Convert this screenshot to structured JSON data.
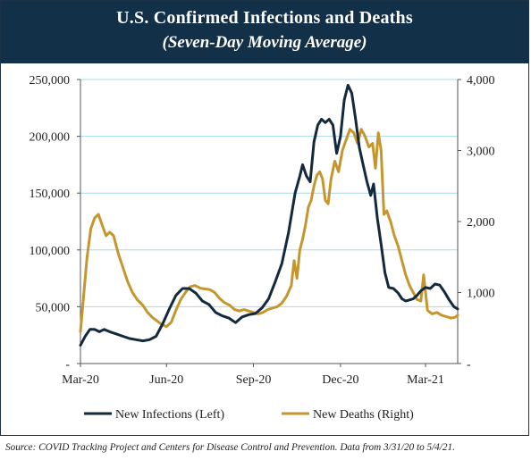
{
  "header": {
    "title": "U.S. Confirmed Infections and Deaths",
    "subtitle": "(Seven-Day Moving Average)"
  },
  "footer": {
    "source": "Source: COVID Tracking Project and Centers for Disease Control and Prevention. Data from 3/31/20 to 5/4/21."
  },
  "colors": {
    "banner": "#133049",
    "infections": "#13293d",
    "deaths": "#c6962e",
    "grid": "#a9d8ea",
    "axis": "#555555"
  },
  "chart_data": {
    "type": "line",
    "x_tick_labels": [
      "Mar-20",
      "Jun-20",
      "Sep-20",
      "Dec-20",
      "Mar-21"
    ],
    "x_range": [
      "2020-03-31",
      "2021-05-04"
    ],
    "x_ticks": [
      "2020-03-31",
      "2020-06-30",
      "2020-09-30",
      "2020-12-31",
      "2021-03-31"
    ],
    "y_left": {
      "ylim": [
        0,
        250000
      ],
      "ticks": [
        0,
        50000,
        100000,
        150000,
        200000,
        250000
      ],
      "tick_labels": [
        "-",
        "50,000",
        "100,000",
        "150,000",
        "200,000",
        "250,000"
      ]
    },
    "y_right": {
      "ylim": [
        0,
        4000
      ],
      "ticks": [
        0,
        1000,
        2000,
        3000,
        4000
      ],
      "tick_labels": [
        "-",
        "1,000",
        "2,000",
        "3,000",
        "4,000"
      ]
    },
    "grid": "horizontal",
    "legend_position": "bottom",
    "series": [
      {
        "name": "New Infections (Left)",
        "axis": "left",
        "points": [
          [
            "2020-03-31",
            16000
          ],
          [
            "2020-04-05",
            24000
          ],
          [
            "2020-04-10",
            30000
          ],
          [
            "2020-04-15",
            30000
          ],
          [
            "2020-04-20",
            28000
          ],
          [
            "2020-04-25",
            30000
          ],
          [
            "2020-05-01",
            28000
          ],
          [
            "2020-05-08",
            26000
          ],
          [
            "2020-05-15",
            24000
          ],
          [
            "2020-05-22",
            22000
          ],
          [
            "2020-05-29",
            21000
          ],
          [
            "2020-06-05",
            20000
          ],
          [
            "2020-06-12",
            21000
          ],
          [
            "2020-06-19",
            24000
          ],
          [
            "2020-06-26",
            35000
          ],
          [
            "2020-07-03",
            48000
          ],
          [
            "2020-07-10",
            60000
          ],
          [
            "2020-07-17",
            66000
          ],
          [
            "2020-07-24",
            66000
          ],
          [
            "2020-07-31",
            62000
          ],
          [
            "2020-08-07",
            55000
          ],
          [
            "2020-08-14",
            52000
          ],
          [
            "2020-08-21",
            45000
          ],
          [
            "2020-08-28",
            42000
          ],
          [
            "2020-09-04",
            40000
          ],
          [
            "2020-09-11",
            36000
          ],
          [
            "2020-09-18",
            41000
          ],
          [
            "2020-09-25",
            43000
          ],
          [
            "2020-10-02",
            44000
          ],
          [
            "2020-10-09",
            49000
          ],
          [
            "2020-10-16",
            57000
          ],
          [
            "2020-10-23",
            72000
          ],
          [
            "2020-10-30",
            88000
          ],
          [
            "2020-11-06",
            115000
          ],
          [
            "2020-11-13",
            150000
          ],
          [
            "2020-11-18",
            165000
          ],
          [
            "2020-11-21",
            175000
          ],
          [
            "2020-11-25",
            165000
          ],
          [
            "2020-11-29",
            160000
          ],
          [
            "2020-12-03",
            195000
          ],
          [
            "2020-12-07",
            210000
          ],
          [
            "2020-12-11",
            215000
          ],
          [
            "2020-12-15",
            212000
          ],
          [
            "2020-12-19",
            215000
          ],
          [
            "2020-12-23",
            210000
          ],
          [
            "2020-12-27",
            185000
          ],
          [
            "2020-12-31",
            200000
          ],
          [
            "2021-01-04",
            232000
          ],
          [
            "2021-01-08",
            245000
          ],
          [
            "2021-01-12",
            238000
          ],
          [
            "2021-01-16",
            215000
          ],
          [
            "2021-01-20",
            190000
          ],
          [
            "2021-01-24",
            175000
          ],
          [
            "2021-01-28",
            160000
          ],
          [
            "2021-02-01",
            148000
          ],
          [
            "2021-02-04",
            158000
          ],
          [
            "2021-02-08",
            128000
          ],
          [
            "2021-02-12",
            105000
          ],
          [
            "2021-02-16",
            80000
          ],
          [
            "2021-02-20",
            67000
          ],
          [
            "2021-02-25",
            66000
          ],
          [
            "2021-03-02",
            62000
          ],
          [
            "2021-03-06",
            57000
          ],
          [
            "2021-03-10",
            55000
          ],
          [
            "2021-03-14",
            56000
          ],
          [
            "2021-03-18",
            57000
          ],
          [
            "2021-03-22",
            60000
          ],
          [
            "2021-03-26",
            64000
          ],
          [
            "2021-03-31",
            67000
          ],
          [
            "2021-04-05",
            66000
          ],
          [
            "2021-04-10",
            70000
          ],
          [
            "2021-04-15",
            69000
          ],
          [
            "2021-04-20",
            63000
          ],
          [
            "2021-04-25",
            56000
          ],
          [
            "2021-04-30",
            50000
          ],
          [
            "2021-05-04",
            48000
          ]
        ]
      },
      {
        "name": "New Deaths (Right)",
        "axis": "right",
        "points": [
          [
            "2020-03-31",
            450
          ],
          [
            "2020-04-03",
            900
          ],
          [
            "2020-04-07",
            1500
          ],
          [
            "2020-04-11",
            1900
          ],
          [
            "2020-04-15",
            2050
          ],
          [
            "2020-04-19",
            2100
          ],
          [
            "2020-04-23",
            1950
          ],
          [
            "2020-04-27",
            1800
          ],
          [
            "2020-05-01",
            1850
          ],
          [
            "2020-05-05",
            1800
          ],
          [
            "2020-05-10",
            1550
          ],
          [
            "2020-05-15",
            1350
          ],
          [
            "2020-05-20",
            1150
          ],
          [
            "2020-05-25",
            1000
          ],
          [
            "2020-05-30",
            900
          ],
          [
            "2020-06-05",
            820
          ],
          [
            "2020-06-10",
            720
          ],
          [
            "2020-06-15",
            650
          ],
          [
            "2020-06-20",
            600
          ],
          [
            "2020-06-25",
            550
          ],
          [
            "2020-06-30",
            520
          ],
          [
            "2020-07-05",
            580
          ],
          [
            "2020-07-10",
            750
          ],
          [
            "2020-07-15",
            900
          ],
          [
            "2020-07-20",
            1000
          ],
          [
            "2020-07-25",
            1080
          ],
          [
            "2020-07-30",
            1100
          ],
          [
            "2020-08-05",
            1060
          ],
          [
            "2020-08-10",
            1050
          ],
          [
            "2020-08-15",
            1040
          ],
          [
            "2020-08-20",
            1000
          ],
          [
            "2020-08-25",
            920
          ],
          [
            "2020-08-30",
            860
          ],
          [
            "2020-09-05",
            820
          ],
          [
            "2020-09-10",
            760
          ],
          [
            "2020-09-15",
            740
          ],
          [
            "2020-09-20",
            760
          ],
          [
            "2020-09-25",
            740
          ],
          [
            "2020-09-30",
            720
          ],
          [
            "2020-10-05",
            700
          ],
          [
            "2020-10-10",
            720
          ],
          [
            "2020-10-15",
            760
          ],
          [
            "2020-10-20",
            780
          ],
          [
            "2020-10-25",
            800
          ],
          [
            "2020-10-30",
            850
          ],
          [
            "2020-11-04",
            950
          ],
          [
            "2020-11-09",
            1100
          ],
          [
            "2020-11-12",
            1450
          ],
          [
            "2020-11-15",
            1200
          ],
          [
            "2020-11-18",
            1600
          ],
          [
            "2020-11-21",
            1750
          ],
          [
            "2020-11-24",
            1950
          ],
          [
            "2020-11-27",
            2200
          ],
          [
            "2020-11-30",
            2300
          ],
          [
            "2020-12-03",
            2500
          ],
          [
            "2020-12-06",
            2650
          ],
          [
            "2020-12-09",
            2700
          ],
          [
            "2020-12-12",
            2600
          ],
          [
            "2020-12-15",
            2300
          ],
          [
            "2020-12-18",
            2250
          ],
          [
            "2020-12-21",
            2600
          ],
          [
            "2020-12-25",
            2850
          ],
          [
            "2020-12-29",
            2700
          ],
          [
            "2021-01-02",
            3000
          ],
          [
            "2021-01-06",
            3150
          ],
          [
            "2021-01-10",
            3300
          ],
          [
            "2021-01-14",
            3250
          ],
          [
            "2021-01-18",
            3100
          ],
          [
            "2021-01-22",
            3300
          ],
          [
            "2021-01-26",
            3200
          ],
          [
            "2021-01-30",
            3050
          ],
          [
            "2021-02-03",
            3100
          ],
          [
            "2021-02-06",
            2750
          ],
          [
            "2021-02-09",
            3250
          ],
          [
            "2021-02-12",
            3000
          ],
          [
            "2021-02-15",
            2100
          ],
          [
            "2021-02-18",
            2150
          ],
          [
            "2021-02-22",
            2000
          ],
          [
            "2021-02-26",
            1800
          ],
          [
            "2021-03-02",
            1650
          ],
          [
            "2021-03-06",
            1450
          ],
          [
            "2021-03-10",
            1250
          ],
          [
            "2021-03-14",
            1100
          ],
          [
            "2021-03-18",
            1000
          ],
          [
            "2021-03-22",
            900
          ],
          [
            "2021-03-26",
            880
          ],
          [
            "2021-03-29",
            1250
          ],
          [
            "2021-04-02",
            750
          ],
          [
            "2021-04-07",
            700
          ],
          [
            "2021-04-12",
            720
          ],
          [
            "2021-04-17",
            680
          ],
          [
            "2021-04-22",
            660
          ],
          [
            "2021-04-27",
            640
          ],
          [
            "2021-05-01",
            650
          ],
          [
            "2021-05-04",
            680
          ]
        ]
      }
    ]
  }
}
